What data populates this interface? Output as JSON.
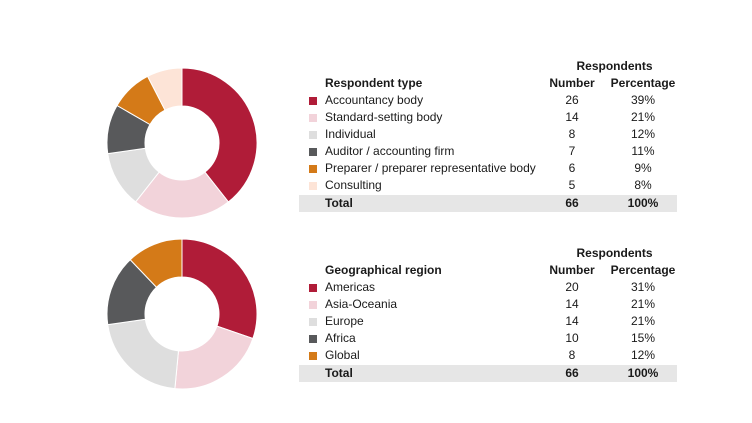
{
  "chart_data": [
    {
      "type": "pie",
      "title": "Respondent type",
      "header": {
        "group": "Respondents",
        "label": "Respondent type",
        "number": "Number",
        "percentage": "Percentage"
      },
      "rows": [
        {
          "label": "Accountancy body",
          "value": 26,
          "pct": "39%",
          "color": "#b01c38"
        },
        {
          "label": "Standard-setting body",
          "value": 14,
          "pct": "21%",
          "color": "#f2d3da"
        },
        {
          "label": "Individual",
          "value": 8,
          "pct": "12%",
          "color": "#dedede"
        },
        {
          "label": "Auditor / accounting firm",
          "value": 7,
          "pct": "11%",
          "color": "#58595b"
        },
        {
          "label": "Preparer / preparer representative body",
          "value": 6,
          "pct": "9%",
          "color": "#d47a18"
        },
        {
          "label": "Consulting",
          "value": 5,
          "pct": "8%",
          "color": "#fde4d7"
        }
      ],
      "total": {
        "label": "Total",
        "value": "66",
        "pct": "100%"
      }
    },
    {
      "type": "pie",
      "title": "Geographical region",
      "header": {
        "group": "Respondents",
        "label": "Geographical region",
        "number": "Number",
        "percentage": "Percentage"
      },
      "rows": [
        {
          "label": "Americas",
          "value": 20,
          "pct": "31%",
          "color": "#b01c38"
        },
        {
          "label": "Asia-Oceania",
          "value": 14,
          "pct": "21%",
          "color": "#f2d3da"
        },
        {
          "label": "Europe",
          "value": 14,
          "pct": "21%",
          "color": "#dedede"
        },
        {
          "label": "Africa",
          "value": 10,
          "pct": "15%",
          "color": "#58595b"
        },
        {
          "label": "Global",
          "value": 8,
          "pct": "12%",
          "color": "#d47a18"
        }
      ],
      "total": {
        "label": "Total",
        "value": "66",
        "pct": "100%"
      }
    }
  ]
}
